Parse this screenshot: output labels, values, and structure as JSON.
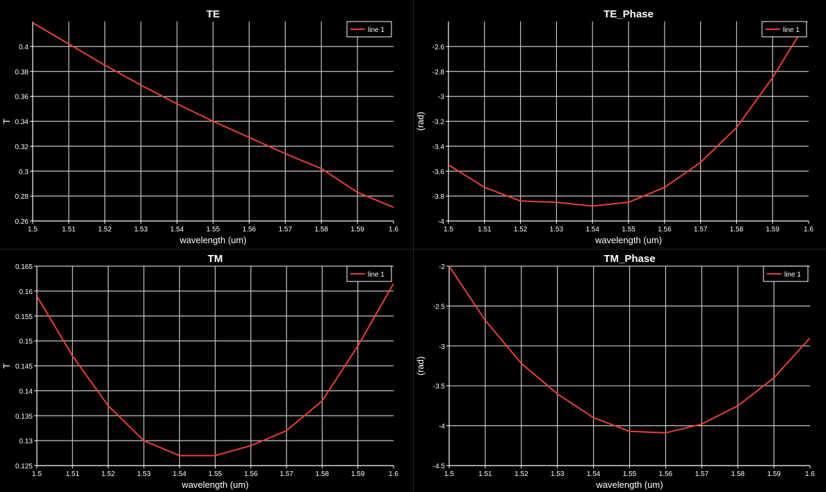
{
  "chart_data": [
    {
      "type": "line",
      "title": "TE",
      "xlabel": "wavelength (um)",
      "ylabel": "T",
      "xlim": [
        1.5,
        1.6
      ],
      "ylim": [
        0.26,
        0.42
      ],
      "xticks": [
        "1.5",
        "1.51",
        "1.52",
        "1.53",
        "1.54",
        "1.55",
        "1.56",
        "1.57",
        "1.58",
        "1.59",
        "1.6"
      ],
      "yticks": [
        "0.26",
        "0.28",
        "0.3",
        "0.32",
        "0.34",
        "0.36",
        "0.38",
        "0.4"
      ],
      "grid": true,
      "legend_position": "top-right",
      "series": [
        {
          "name": "line 1",
          "color": "#e8413a",
          "x": [
            1.5,
            1.51,
            1.52,
            1.53,
            1.54,
            1.55,
            1.56,
            1.57,
            1.58,
            1.59,
            1.6
          ],
          "y": [
            0.419,
            0.402,
            0.385,
            0.369,
            0.354,
            0.34,
            0.327,
            0.314,
            0.302,
            0.283,
            0.271
          ]
        }
      ]
    },
    {
      "type": "line",
      "title": "TE_Phase",
      "xlabel": "wavelength (um)",
      "ylabel": "(rad)",
      "xlim": [
        1.5,
        1.6
      ],
      "ylim": [
        -4.0,
        -2.4
      ],
      "xticks": [
        "1.5",
        "1.51",
        "1.52",
        "1.53",
        "1.54",
        "1.55",
        "1.56",
        "1.57",
        "1.58",
        "1.59",
        "1.6"
      ],
      "yticks": [
        "-4",
        "-3.8",
        "-3.6",
        "-3.4",
        "-3.2",
        "-3",
        "-2.8",
        "-2.6"
      ],
      "grid": true,
      "legend_position": "top-right",
      "series": [
        {
          "name": "line 1",
          "color": "#e8413a",
          "x": [
            1.5,
            1.51,
            1.52,
            1.53,
            1.54,
            1.55,
            1.56,
            1.57,
            1.58,
            1.59,
            1.6
          ],
          "y": [
            -3.55,
            -3.73,
            -3.84,
            -3.85,
            -3.88,
            -3.85,
            -3.73,
            -3.53,
            -3.25,
            -2.85,
            -2.38
          ]
        }
      ]
    },
    {
      "type": "line",
      "title": "TM",
      "xlabel": "wavelength (um)",
      "ylabel": "T",
      "xlim": [
        1.5,
        1.6
      ],
      "ylim": [
        0.125,
        0.165
      ],
      "xticks": [
        "1.5",
        "1.51",
        "1.52",
        "1.53",
        "1.54",
        "1.55",
        "1.56",
        "1.57",
        "1.58",
        "1.59",
        "1.6"
      ],
      "yticks": [
        "0.125",
        "0.13",
        "0.135",
        "0.14",
        "0.145",
        "0.15",
        "0.155",
        "0.16",
        "0.165"
      ],
      "grid": true,
      "legend_position": "top-right",
      "series": [
        {
          "name": "line 1",
          "color": "#e8413a",
          "x": [
            1.5,
            1.51,
            1.52,
            1.53,
            1.54,
            1.55,
            1.56,
            1.57,
            1.58,
            1.59,
            1.6
          ],
          "y": [
            0.159,
            0.147,
            0.137,
            0.13,
            0.127,
            0.127,
            0.129,
            0.132,
            0.138,
            0.149,
            0.1615
          ]
        }
      ]
    },
    {
      "type": "line",
      "title": "TM_Phase",
      "xlabel": "wavelength (um)",
      "ylabel": "(rad)",
      "xlim": [
        1.5,
        1.6
      ],
      "ylim": [
        -4.5,
        -2.0
      ],
      "xticks": [
        "1.5",
        "1.51",
        "1.52",
        "1.53",
        "1.54",
        "1.55",
        "1.56",
        "1.57",
        "1.58",
        "1.59",
        "1.6"
      ],
      "yticks": [
        "-4.5",
        "-4",
        "-3.5",
        "-3",
        "-2.5",
        "-2"
      ],
      "grid": true,
      "legend_position": "top-right",
      "series": [
        {
          "name": "line 1",
          "color": "#e8413a",
          "x": [
            1.5,
            1.51,
            1.52,
            1.53,
            1.54,
            1.55,
            1.56,
            1.57,
            1.58,
            1.59,
            1.6
          ],
          "y": [
            -2.0,
            -2.68,
            -3.22,
            -3.6,
            -3.9,
            -4.07,
            -4.09,
            -3.98,
            -3.75,
            -3.4,
            -2.9
          ]
        }
      ]
    }
  ],
  "colors": {
    "background": "#000000",
    "grid": "#c8c8c8",
    "axis": "#ffffff",
    "text": "#ffffff",
    "line": "#e8413a",
    "legend_border": "#ffffff"
  }
}
